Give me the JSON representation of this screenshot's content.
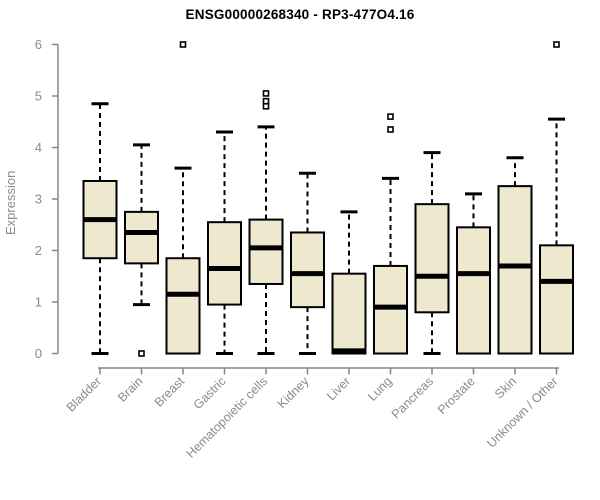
{
  "chart_data": {
    "type": "boxplot",
    "title": "ENSG00000268340 - RP3-477O4.16",
    "ylabel": "Expression",
    "xlabel": "",
    "ylim": [
      0,
      6
    ],
    "yticks": [
      0,
      1,
      2,
      3,
      4,
      5,
      6
    ],
    "grid": false,
    "legend": "none",
    "x_tick_rotation_deg": 45,
    "categories": [
      "Bladder",
      "Brain",
      "Breast",
      "Gastric",
      "Hematopoietic cells",
      "Kidney",
      "Liver",
      "Lung",
      "Pancreas",
      "Prostate",
      "Skin",
      "Unknown / Other"
    ],
    "series": [
      {
        "category": "Bladder",
        "whisker_low": 0,
        "q1": 1.85,
        "median": 2.6,
        "q3": 3.35,
        "whisker_high": 4.85,
        "outliers": []
      },
      {
        "category": "Brain",
        "whisker_low": 0.95,
        "q1": 1.75,
        "median": 2.35,
        "q3": 2.75,
        "whisker_high": 4.05,
        "outliers": [
          0
        ]
      },
      {
        "category": "Breast",
        "whisker_low": 0,
        "q1": 0,
        "median": 1.15,
        "q3": 1.85,
        "whisker_high": 3.6,
        "outliers": [
          6
        ]
      },
      {
        "category": "Gastric",
        "whisker_low": 0,
        "q1": 0.95,
        "median": 1.65,
        "q3": 2.55,
        "whisker_high": 4.3,
        "outliers": []
      },
      {
        "category": "Hematopoietic cells",
        "whisker_low": 0,
        "q1": 1.35,
        "median": 2.05,
        "q3": 2.6,
        "whisker_high": 4.4,
        "outliers": [
          5.05,
          4.9,
          4.8
        ]
      },
      {
        "category": "Kidney",
        "whisker_low": 0,
        "q1": 0.9,
        "median": 1.55,
        "q3": 2.35,
        "whisker_high": 3.5,
        "outliers": []
      },
      {
        "category": "Liver",
        "whisker_low": 0,
        "q1": 0,
        "median": 0.05,
        "q3": 1.55,
        "whisker_high": 2.75,
        "outliers": []
      },
      {
        "category": "Lung",
        "whisker_low": 0,
        "q1": 0,
        "median": 0.9,
        "q3": 1.7,
        "whisker_high": 3.4,
        "outliers": [
          4.6,
          4.35
        ]
      },
      {
        "category": "Pancreas",
        "whisker_low": 0,
        "q1": 0.8,
        "median": 1.5,
        "q3": 2.9,
        "whisker_high": 3.9,
        "outliers": []
      },
      {
        "category": "Prostate",
        "whisker_low": 0,
        "q1": 0,
        "median": 1.55,
        "q3": 2.45,
        "whisker_high": 3.1,
        "outliers": []
      },
      {
        "category": "Skin",
        "whisker_low": 0,
        "q1": 0,
        "median": 1.7,
        "q3": 3.25,
        "whisker_high": 3.8,
        "outliers": []
      },
      {
        "category": "Unknown / Other",
        "whisker_low": 0,
        "q1": 0,
        "median": 1.4,
        "q3": 2.1,
        "whisker_high": 4.55,
        "outliers": [
          6
        ]
      }
    ],
    "colors": {
      "box_fill": "#EDE8CE",
      "box_stroke": "#000000",
      "median": "#000000",
      "whisker": "#000000",
      "outlier_stroke": "#000000",
      "outlier_fill": "#ffffff",
      "axis": "#878787",
      "tick_label": "#8a8a8a",
      "title": "#000000",
      "background": "#ffffff"
    }
  }
}
